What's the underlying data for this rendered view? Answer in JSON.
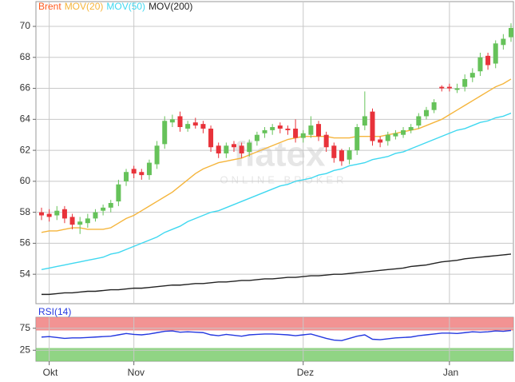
{
  "chart_data": [
    {
      "type": "candlestick",
      "watermark": {
        "text": "flatex",
        "subtext": "ONLINE BROKER"
      },
      "categories": [
        null,
        "Okt",
        null,
        null,
        null,
        null,
        null,
        null,
        null,
        null,
        null,
        null,
        "Nov",
        null,
        null,
        null,
        null,
        null,
        null,
        null,
        null,
        null,
        null,
        null,
        null,
        null,
        null,
        null,
        null,
        null,
        null,
        null,
        null,
        null,
        "Dez",
        null,
        null,
        null,
        null,
        null,
        null,
        null,
        null,
        null,
        null,
        null,
        null,
        null,
        null,
        null,
        null,
        null,
        null,
        "Jan",
        null,
        null,
        null,
        null,
        null,
        null,
        null,
        null
      ],
      "ylim": [
        52.1,
        71.6
      ],
      "yticks": [
        54,
        56,
        58,
        60,
        62,
        64,
        66,
        68,
        70
      ],
      "grid": true,
      "up_color": "#66c25a",
      "down_color": "#e8323a",
      "candles": {
        "name": "Brent",
        "color": "#ff5a1e",
        "open": [
          58.0,
          57.9,
          57.8,
          58.2,
          57.7,
          57.2,
          57.3,
          57.6,
          58.1,
          58.3,
          58.7,
          60.0,
          60.8,
          60.6,
          60.4,
          61.1,
          62.4,
          63.8,
          64.2,
          63.4,
          63.8,
          63.7,
          63.4,
          62.3,
          61.8,
          62.4,
          62.3,
          61.9,
          62.6,
          63.1,
          63.3,
          63.6,
          63.4,
          63.4,
          62.8,
          63.0,
          63.7,
          63.0,
          62.3,
          62.0,
          61.4,
          62.0,
          63.6,
          64.5,
          62.7,
          62.6,
          62.9,
          63.0,
          63.3,
          63.6,
          64.2,
          64.6,
          66.1,
          66.1,
          65.9,
          66.1,
          66.7,
          67.1,
          68.1,
          67.6,
          68.8,
          69.3
        ],
        "high": [
          58.3,
          58.2,
          58.4,
          58.4,
          57.9,
          57.7,
          57.9,
          58.2,
          58.5,
          58.8,
          60.1,
          60.8,
          61.0,
          60.8,
          61.4,
          62.6,
          64.2,
          64.3,
          64.5,
          63.9,
          64.1,
          63.9,
          63.6,
          62.5,
          62.5,
          62.6,
          62.5,
          62.7,
          63.2,
          63.5,
          63.7,
          63.8,
          63.6,
          64.0,
          63.3,
          64.2,
          63.9,
          63.2,
          62.5,
          62.1,
          62.2,
          63.7,
          65.8,
          64.7,
          62.9,
          63.2,
          63.3,
          63.5,
          63.7,
          64.4,
          64.8,
          65.3,
          66.2,
          66.3,
          66.3,
          66.9,
          67.3,
          68.3,
          68.3,
          69.1,
          69.5,
          70.2
        ],
        "low": [
          57.5,
          57.4,
          57.5,
          57.3,
          56.9,
          56.6,
          57.0,
          57.4,
          57.8,
          58.0,
          58.4,
          59.7,
          60.2,
          60.1,
          60.1,
          60.8,
          62.1,
          63.5,
          63.2,
          63.2,
          63.4,
          63.1,
          61.9,
          61.5,
          61.5,
          61.9,
          61.5,
          61.6,
          62.3,
          62.8,
          63.0,
          63.1,
          63.0,
          62.5,
          62.5,
          62.8,
          62.6,
          61.9,
          61.2,
          61.0,
          61.1,
          61.7,
          63.3,
          62.3,
          62.2,
          62.3,
          62.7,
          62.8,
          63.1,
          63.4,
          64.0,
          64.4,
          65.8,
          65.8,
          65.7,
          65.8,
          66.4,
          66.8,
          67.2,
          67.3,
          68.5,
          69.0
        ],
        "close": [
          57.8,
          57.7,
          58.1,
          57.6,
          57.2,
          57.4,
          57.6,
          58.0,
          58.3,
          58.6,
          59.8,
          60.6,
          60.5,
          60.4,
          61.2,
          62.3,
          63.9,
          64.0,
          63.5,
          63.7,
          63.6,
          63.4,
          62.2,
          61.8,
          62.3,
          62.2,
          61.8,
          62.5,
          63.0,
          63.3,
          63.5,
          63.4,
          63.3,
          62.8,
          63.1,
          63.6,
          62.9,
          62.2,
          61.5,
          61.3,
          62.0,
          63.5,
          64.2,
          62.6,
          62.5,
          63.0,
          63.1,
          63.3,
          63.5,
          64.2,
          64.6,
          65.1,
          66.0,
          66.0,
          66.0,
          66.6,
          67.0,
          68.0,
          67.5,
          68.9,
          69.2,
          69.9
        ]
      },
      "series": [
        {
          "name": "MOV(20)",
          "color": "#f5b53c",
          "values": [
            56.7,
            56.8,
            56.8,
            56.9,
            57.0,
            57.0,
            56.9,
            56.9,
            56.9,
            57.0,
            57.3,
            57.6,
            57.8,
            58.1,
            58.4,
            58.7,
            59.0,
            59.3,
            59.7,
            60.1,
            60.5,
            60.8,
            61.0,
            61.2,
            61.3,
            61.4,
            61.5,
            61.7,
            61.9,
            62.1,
            62.3,
            62.5,
            62.7,
            62.8,
            62.9,
            62.9,
            62.9,
            62.9,
            62.8,
            62.8,
            62.8,
            62.9,
            62.9,
            62.9,
            62.9,
            63.0,
            63.1,
            63.2,
            63.3,
            63.4,
            63.6,
            63.8,
            64.0,
            64.3,
            64.6,
            64.9,
            65.2,
            65.5,
            65.8,
            66.1,
            66.3,
            66.6
          ]
        },
        {
          "name": "MOV(50)",
          "color": "#3fd8f0",
          "values": [
            54.3,
            54.4,
            54.5,
            54.6,
            54.7,
            54.8,
            54.9,
            55.0,
            55.1,
            55.3,
            55.4,
            55.6,
            55.8,
            56.0,
            56.2,
            56.4,
            56.7,
            56.9,
            57.1,
            57.4,
            57.6,
            57.8,
            58.0,
            58.1,
            58.3,
            58.5,
            58.7,
            58.9,
            59.1,
            59.3,
            59.5,
            59.7,
            59.8,
            60.0,
            60.1,
            60.2,
            60.4,
            60.5,
            60.7,
            60.8,
            61.0,
            61.1,
            61.2,
            61.4,
            61.5,
            61.6,
            61.8,
            61.9,
            62.1,
            62.3,
            62.5,
            62.7,
            62.9,
            63.1,
            63.3,
            63.4,
            63.6,
            63.8,
            63.9,
            64.1,
            64.2,
            64.4
          ]
        },
        {
          "name": "MOV(200)",
          "color": "#222222",
          "values": [
            52.7,
            52.7,
            52.75,
            52.8,
            52.8,
            52.85,
            52.9,
            52.9,
            52.95,
            53.0,
            53.0,
            53.05,
            53.1,
            53.1,
            53.15,
            53.2,
            53.25,
            53.3,
            53.3,
            53.35,
            53.4,
            53.4,
            53.45,
            53.5,
            53.5,
            53.55,
            53.6,
            53.6,
            53.65,
            53.7,
            53.7,
            53.75,
            53.8,
            53.8,
            53.85,
            53.9,
            53.9,
            53.95,
            54.0,
            54.0,
            54.05,
            54.1,
            54.15,
            54.2,
            54.25,
            54.3,
            54.35,
            54.4,
            54.5,
            54.55,
            54.6,
            54.7,
            54.8,
            54.85,
            54.9,
            55.0,
            55.05,
            55.1,
            55.15,
            55.2,
            55.25,
            55.3
          ]
        }
      ]
    },
    {
      "type": "line",
      "ylim": [
        0,
        100
      ],
      "yticks": [
        25,
        75
      ],
      "bands": [
        {
          "from": 70,
          "to": 100,
          "color": "#f08080"
        },
        {
          "from": 0,
          "to": 30,
          "color": "#7ccd6e"
        }
      ],
      "series": [
        {
          "name": "RSI(14)",
          "color": "#2438e0",
          "values": [
            55,
            56,
            54,
            52,
            53,
            53,
            54,
            55,
            56,
            57,
            60,
            63,
            61,
            60,
            62,
            65,
            68,
            69,
            66,
            67,
            66,
            65,
            60,
            58,
            61,
            59,
            57,
            60,
            61,
            62,
            62,
            61,
            60,
            58,
            60,
            62,
            57,
            52,
            48,
            47,
            52,
            57,
            60,
            50,
            49,
            51,
            53,
            54,
            55,
            58,
            60,
            62,
            64,
            64,
            63,
            65,
            67,
            66,
            67,
            69,
            68,
            70
          ]
        }
      ]
    }
  ]
}
